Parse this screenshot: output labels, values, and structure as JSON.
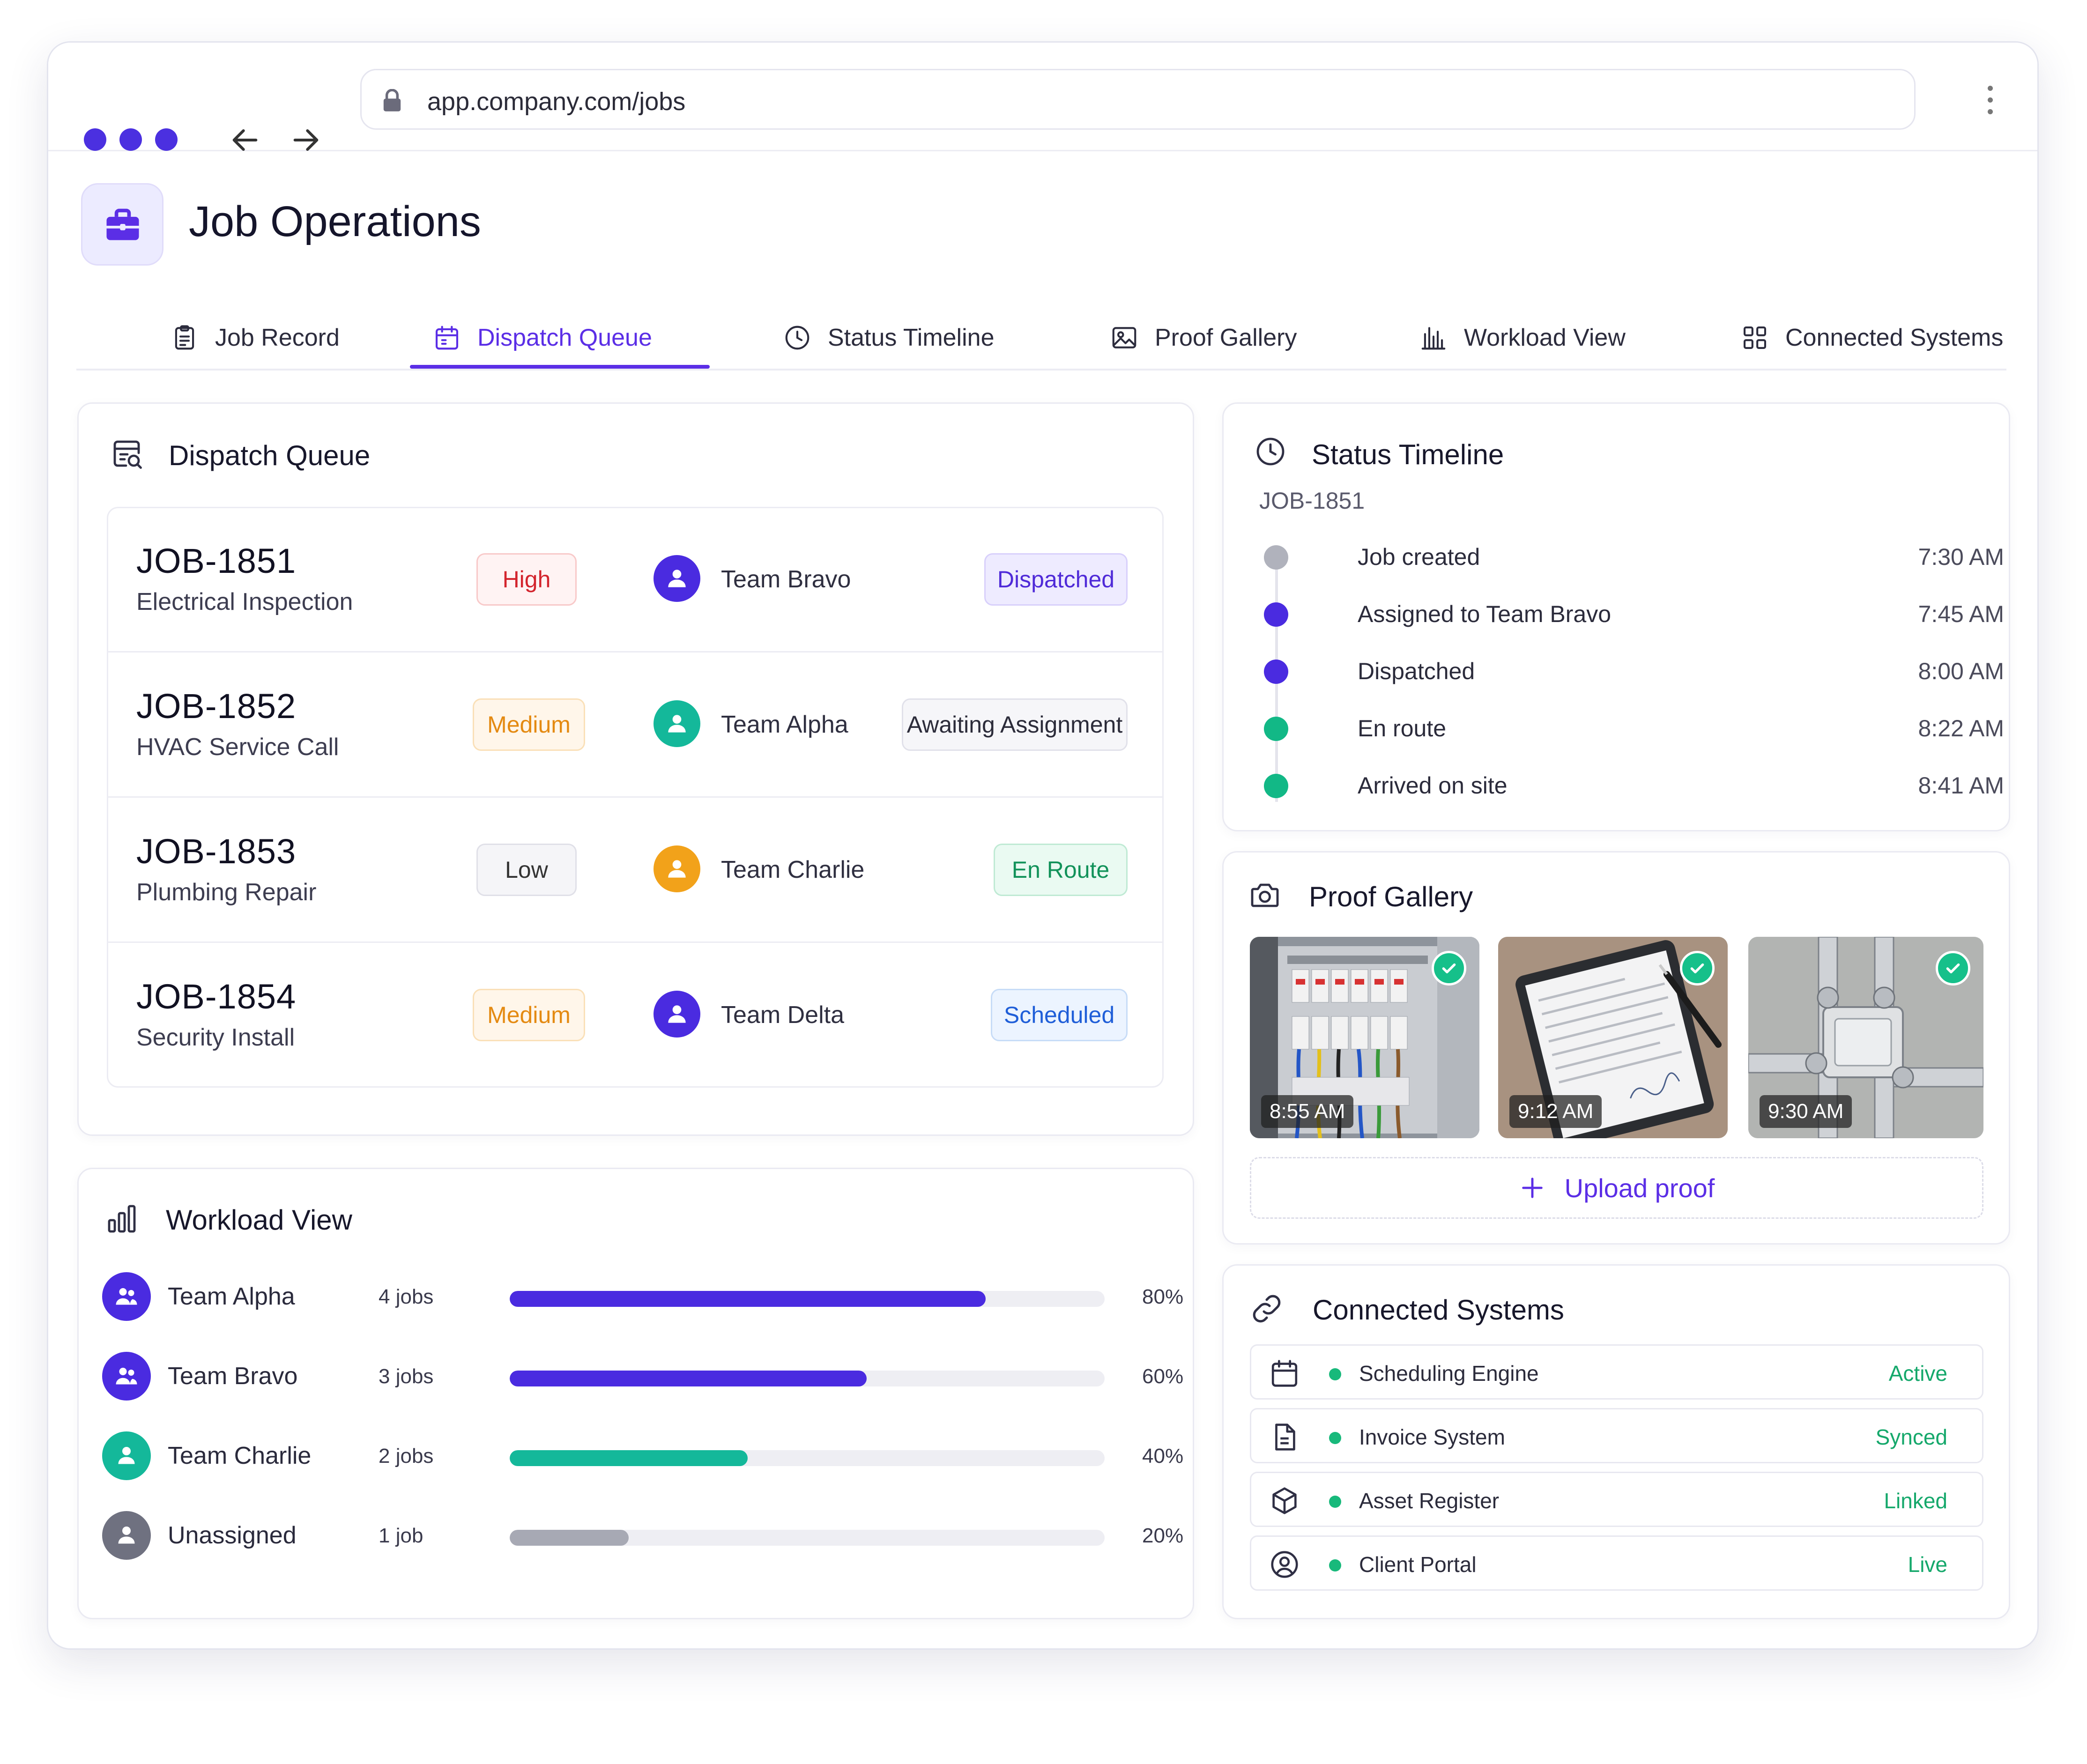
{
  "browser": {
    "url": "app.company.com/jobs"
  },
  "app": {
    "title": "Job Operations"
  },
  "tabs": [
    {
      "label": "Job Record",
      "icon": "clipboard-icon",
      "active": false
    },
    {
      "label": "Dispatch Queue",
      "icon": "calendar-icon",
      "active": true
    },
    {
      "label": "Status Timeline",
      "icon": "clock-icon",
      "active": false
    },
    {
      "label": "Proof Gallery",
      "icon": "image-icon",
      "active": false
    },
    {
      "label": "Workload View",
      "icon": "bar-chart-icon",
      "active": false
    },
    {
      "label": "Connected Systems",
      "icon": "grid-icon",
      "active": false
    }
  ],
  "dispatch": {
    "title": "Dispatch Queue",
    "jobs": [
      {
        "id": "JOB-1851",
        "desc": "Electrical Inspection",
        "priority": "High",
        "team": "Team Bravo",
        "status": "Dispatched"
      },
      {
        "id": "JOB-1852",
        "desc": "HVAC Service Call",
        "priority": "Medium",
        "team": "Team Alpha",
        "status": "Awaiting Assignment"
      },
      {
        "id": "JOB-1853",
        "desc": "Plumbing Repair",
        "priority": "Low",
        "team": "Team Charlie",
        "status": "En Route"
      },
      {
        "id": "JOB-1854",
        "desc": "Security Install",
        "priority": "Medium",
        "team": "Team Delta",
        "status": "Scheduled"
      }
    ]
  },
  "workload": {
    "title": "Workload View",
    "rows": [
      {
        "name": "Team Alpha",
        "jobs": "4 jobs",
        "pct_label": "80%",
        "pct": 0.8,
        "color": "#4a2be0"
      },
      {
        "name": "Team Bravo",
        "jobs": "3 jobs",
        "pct_label": "60%",
        "pct": 0.6,
        "color": "#4a2be0"
      },
      {
        "name": "Team Charlie",
        "jobs": "2 jobs",
        "pct_label": "40%",
        "pct": 0.4,
        "color": "#14b89a"
      },
      {
        "name": "Unassigned",
        "jobs": "1 job",
        "pct_label": "20%",
        "pct": 0.2,
        "color": "#a7a9b4"
      }
    ]
  },
  "timeline": {
    "title": "Status Timeline",
    "job": "JOB-1851",
    "events": [
      {
        "label": "Job created",
        "time": "7:30 AM",
        "color": "#b0b2bc"
      },
      {
        "label": "Assigned to Team Bravo",
        "time": "7:45 AM",
        "color": "#4a2be0"
      },
      {
        "label": "Dispatched",
        "time": "8:00 AM",
        "color": "#4a2be0"
      },
      {
        "label": "En route",
        "time": "8:22 AM",
        "color": "#12b886"
      },
      {
        "label": "Arrived on site",
        "time": "8:41 AM",
        "color": "#12b886"
      }
    ]
  },
  "gallery": {
    "title": "Proof Gallery",
    "photos": [
      {
        "time": "8:55 AM"
      },
      {
        "time": "9:12 AM"
      },
      {
        "time": "9:30 AM"
      }
    ],
    "upload_label": "Upload proof"
  },
  "systems": {
    "title": "Connected Systems",
    "items": [
      {
        "name": "Scheduling Engine",
        "status": "Active",
        "icon": "calendar-icon"
      },
      {
        "name": "Invoice System",
        "status": "Synced",
        "icon": "document-icon"
      },
      {
        "name": "Asset Register",
        "status": "Linked",
        "icon": "cube-icon"
      },
      {
        "name": "Client Portal",
        "status": "Live",
        "icon": "user-circle-icon"
      }
    ]
  },
  "colors": {
    "accent": "#5b2ee6",
    "success": "#12b886",
    "warning": "#e48a12",
    "danger": "#d3242d"
  }
}
